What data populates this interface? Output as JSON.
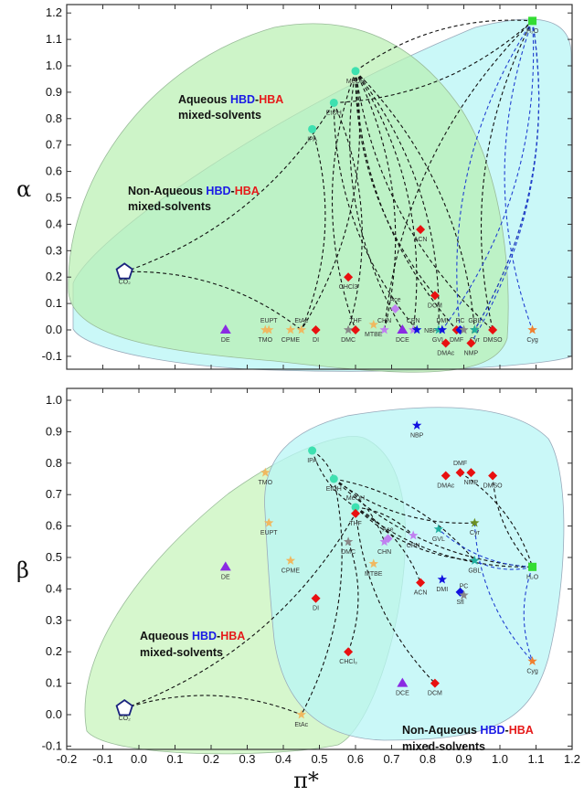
{
  "chart_data": [
    {
      "type": "scatter",
      "panel": "top",
      "xlabel": "",
      "ylabel": "α",
      "xlim": [
        -0.2,
        1.2
      ],
      "ylim": [
        -0.1,
        1.2
      ],
      "xticks": [
        -0.2,
        -0.1,
        0.0,
        0.1,
        0.2,
        0.3,
        0.4,
        0.5,
        0.6,
        0.7,
        0.8,
        0.9,
        1.0,
        1.1,
        1.2
      ],
      "yticks": [
        "-0.1",
        "0.0",
        "0.1",
        "0.2",
        "0.3",
        "0.4",
        "0.5",
        "0.6",
        "0.7",
        "0.8",
        "0.9",
        "1.0",
        "1.1",
        "1.2"
      ],
      "annotations": [
        {
          "parts": [
            "Aqueous ",
            "HBD",
            "-",
            "HBA"
          ],
          "line2": "mixed-solvents"
        },
        {
          "parts": [
            "Non-Aqueous ",
            "HBD",
            "-",
            "HBA"
          ],
          "line2": "mixed-solvents"
        }
      ],
      "points": [
        {
          "label": "H₂O",
          "x": 1.09,
          "y": 1.17,
          "marker": "square",
          "color": "#33dd33"
        },
        {
          "label": "MeOH",
          "x": 0.6,
          "y": 0.98,
          "marker": "circle",
          "color": "#3ee0b0"
        },
        {
          "label": "EtOH",
          "x": 0.54,
          "y": 0.86,
          "marker": "circle",
          "color": "#3ee0b0"
        },
        {
          "label": "IPA",
          "x": 0.48,
          "y": 0.76,
          "marker": "circle",
          "color": "#3ee0b0"
        },
        {
          "label": "CO₂",
          "x": -0.04,
          "y": 0.22,
          "marker": "pentagon",
          "color": "#1a237e"
        },
        {
          "label": "CHCl3",
          "x": 0.58,
          "y": 0.2,
          "marker": "diamond",
          "color": "#e81010"
        },
        {
          "label": "ACN",
          "x": 0.78,
          "y": 0.38,
          "marker": "diamond",
          "color": "#e81010"
        },
        {
          "label": "DCM",
          "x": 0.82,
          "y": 0.13,
          "marker": "diamond",
          "color": "#e81010"
        },
        {
          "label": "Ace",
          "x": 0.71,
          "y": 0.08,
          "marker": "diamond",
          "color": "#c080f0"
        },
        {
          "label": "DE",
          "x": 0.24,
          "y": 0.0,
          "marker": "triangle",
          "color": "#8a2be2"
        },
        {
          "label": "EUPT",
          "x": 0.36,
          "y": 0.0,
          "marker": "star",
          "color": "#f0b860"
        },
        {
          "label": "TMO",
          "x": 0.35,
          "y": 0.0,
          "marker": "star",
          "color": "#f0b860"
        },
        {
          "label": "CPME",
          "x": 0.42,
          "y": 0.0,
          "marker": "star",
          "color": "#f0b860"
        },
        {
          "label": "EtAc",
          "x": 0.45,
          "y": 0.0,
          "marker": "star",
          "color": "#f0b860"
        },
        {
          "label": "DI",
          "x": 0.49,
          "y": 0.0,
          "marker": "diamond",
          "color": "#e81010"
        },
        {
          "label": "DMC",
          "x": 0.58,
          "y": 0.0,
          "marker": "star",
          "color": "#888888"
        },
        {
          "label": "THF",
          "x": 0.6,
          "y": 0.0,
          "marker": "diamond",
          "color": "#e81010"
        },
        {
          "label": "MTBE",
          "x": 0.65,
          "y": 0.02,
          "marker": "star",
          "color": "#f0b860"
        },
        {
          "label": "CHN",
          "x": 0.68,
          "y": 0.0,
          "marker": "star",
          "color": "#c080f0"
        },
        {
          "label": "DCE",
          "x": 0.73,
          "y": 0.0,
          "marker": "triangle",
          "color": "#8a2be2"
        },
        {
          "label": "CPN",
          "x": 0.76,
          "y": 0.0,
          "marker": "star",
          "color": "#c080f0"
        },
        {
          "label": "NBP",
          "x": 0.77,
          "y": 0.0,
          "marker": "star",
          "color": "#1010e0"
        },
        {
          "label": "GVL",
          "x": 0.83,
          "y": 0.0,
          "marker": "star",
          "color": "#20b0a0"
        },
        {
          "label": "DMI",
          "x": 0.84,
          "y": 0.0,
          "marker": "star",
          "color": "#1010e0"
        },
        {
          "label": "DMF",
          "x": 0.88,
          "y": 0.0,
          "marker": "diamond",
          "color": "#e81010"
        },
        {
          "label": "PC",
          "x": 0.89,
          "y": 0.0,
          "marker": "diamond",
          "color": "#1010e0"
        },
        {
          "label": "Sfl",
          "x": 0.9,
          "y": 0.0,
          "marker": "star",
          "color": "#888888"
        },
        {
          "label": "Cyr",
          "x": 0.93,
          "y": 0.0,
          "marker": "star",
          "color": "#6b8e23"
        },
        {
          "label": "GBL",
          "x": 0.93,
          "y": 0.0,
          "marker": "star",
          "color": "#20b0a0"
        },
        {
          "label": "DMSO",
          "x": 0.98,
          "y": 0.0,
          "marker": "diamond",
          "color": "#e81010"
        },
        {
          "label": "DMAc",
          "x": 0.85,
          "y": -0.05,
          "marker": "diamond",
          "color": "#e81010"
        },
        {
          "label": "NMP",
          "x": 0.92,
          "y": -0.05,
          "marker": "diamond",
          "color": "#e81010"
        },
        {
          "label": "Cyg",
          "x": 1.09,
          "y": 0.0,
          "marker": "star",
          "color": "#f08030"
        }
      ],
      "connections": [
        {
          "from": "CO₂",
          "to": "EtAc",
          "color": "#111"
        },
        {
          "from": "CO₂",
          "to": "EtOH",
          "color": "#111"
        },
        {
          "from": "MeOH",
          "to": "EtAc",
          "color": "#111"
        },
        {
          "from": "MeOH",
          "to": "THF",
          "color": "#111"
        },
        {
          "from": "MeOH",
          "to": "CHN",
          "color": "#111"
        },
        {
          "from": "MeOH",
          "to": "DCE",
          "color": "#111"
        },
        {
          "from": "MeOH",
          "to": "CPN",
          "color": "#111"
        },
        {
          "from": "MeOH",
          "to": "DCM",
          "color": "#111"
        },
        {
          "from": "MeOH",
          "to": "GVL",
          "color": "#111"
        },
        {
          "from": "MeOH",
          "to": "DMF",
          "color": "#111"
        },
        {
          "from": "MeOH",
          "to": "GBL",
          "color": "#111"
        },
        {
          "from": "MeOH",
          "to": "DMSO",
          "color": "#111"
        },
        {
          "from": "MeOH",
          "to": "H₂O",
          "color": "#111"
        },
        {
          "from": "EtOH",
          "to": "H₂O",
          "color": "#111"
        },
        {
          "from": "EtOH",
          "to": "DMC",
          "color": "#111"
        },
        {
          "from": "EtOH",
          "to": "NBP",
          "color": "#111"
        },
        {
          "from": "IPA",
          "to": "EtAc",
          "color": "#111"
        },
        {
          "from": "H₂O",
          "to": "CHN",
          "color": "#111"
        },
        {
          "from": "H₂O",
          "to": "Cyr",
          "color": "#111"
        },
        {
          "from": "H₂O",
          "to": "DMSO",
          "color": "#111"
        },
        {
          "from": "H₂O",
          "to": "DMI",
          "color": "#2040d0"
        },
        {
          "from": "H₂O",
          "to": "PC",
          "color": "#2040d0"
        },
        {
          "from": "H₂O",
          "to": "GBL",
          "color": "#2040d0"
        },
        {
          "from": "H₂O",
          "to": "Cyg",
          "color": "#2040d0"
        },
        {
          "from": "H₂O",
          "to": "NMP",
          "color": "#2040d0"
        }
      ]
    },
    {
      "type": "scatter",
      "panel": "bottom",
      "xlabel": "π*",
      "ylabel": "β",
      "xlim": [
        -0.2,
        1.2
      ],
      "ylim": [
        -0.1,
        1.0
      ],
      "xticks": [
        "-0.2",
        "-0.1",
        "0.0",
        "0.1",
        "0.2",
        "0.3",
        "0.4",
        "0.5",
        "0.6",
        "0.7",
        "0.8",
        "0.9",
        "1.0",
        "1.1",
        "1.2"
      ],
      "yticks": [
        "-0.1",
        "0.0",
        "0.1",
        "0.2",
        "0.3",
        "0.4",
        "0.5",
        "0.6",
        "0.7",
        "0.8",
        "0.9",
        "1.0"
      ],
      "annotations": [
        {
          "parts": [
            "Aqueous ",
            "HBD",
            "-",
            "HBA"
          ],
          "line2": "mixed-solvents"
        },
        {
          "parts": [
            "Non-Aqueous ",
            "HBD",
            "-",
            "HBA"
          ],
          "line2": "mixed-solvents"
        }
      ],
      "points": [
        {
          "label": "NBP",
          "x": 0.77,
          "y": 0.92,
          "marker": "star",
          "color": "#1010e0"
        },
        {
          "label": "IPA",
          "x": 0.48,
          "y": 0.84,
          "marker": "circle",
          "color": "#3ee0b0"
        },
        {
          "label": "TMO",
          "x": 0.35,
          "y": 0.77,
          "marker": "star",
          "color": "#f0b860"
        },
        {
          "label": "DMAc",
          "x": 0.85,
          "y": 0.76,
          "marker": "diamond",
          "color": "#e81010"
        },
        {
          "label": "DMF",
          "x": 0.89,
          "y": 0.77,
          "marker": "diamond",
          "color": "#e81010"
        },
        {
          "label": "NMP",
          "x": 0.92,
          "y": 0.77,
          "marker": "diamond",
          "color": "#e81010"
        },
        {
          "label": "DMSO",
          "x": 0.98,
          "y": 0.76,
          "marker": "diamond",
          "color": "#e81010"
        },
        {
          "label": "EtOH",
          "x": 0.54,
          "y": 0.75,
          "marker": "circle",
          "color": "#3ee0b0"
        },
        {
          "label": "MeOH",
          "x": 0.6,
          "y": 0.66,
          "marker": "circle",
          "color": "#3ee0b0"
        },
        {
          "label": "THF",
          "x": 0.6,
          "y": 0.64,
          "marker": "diamond",
          "color": "#e81010"
        },
        {
          "label": "EUPT",
          "x": 0.36,
          "y": 0.61,
          "marker": "star",
          "color": "#f0b860"
        },
        {
          "label": "Cyr",
          "x": 0.93,
          "y": 0.61,
          "marker": "star",
          "color": "#6b8e23"
        },
        {
          "label": "GVL",
          "x": 0.83,
          "y": 0.59,
          "marker": "star",
          "color": "#20b0a0"
        },
        {
          "label": "Ace",
          "x": 0.69,
          "y": 0.56,
          "marker": "diamond",
          "color": "#c080f0"
        },
        {
          "label": "CPN",
          "x": 0.76,
          "y": 0.57,
          "marker": "star",
          "color": "#c080f0"
        },
        {
          "label": "CHN",
          "x": 0.68,
          "y": 0.55,
          "marker": "star",
          "color": "#c080f0"
        },
        {
          "label": "DMC",
          "x": 0.58,
          "y": 0.55,
          "marker": "star",
          "color": "#888888"
        },
        {
          "label": "CPME",
          "x": 0.42,
          "y": 0.49,
          "marker": "star",
          "color": "#f0b860"
        },
        {
          "label": "GBL",
          "x": 0.93,
          "y": 0.49,
          "marker": "star",
          "color": "#20b0a0"
        },
        {
          "label": "MTBE",
          "x": 0.65,
          "y": 0.48,
          "marker": "star",
          "color": "#f0b860"
        },
        {
          "label": "H₂O",
          "x": 1.09,
          "y": 0.47,
          "marker": "square",
          "color": "#33dd33"
        },
        {
          "label": "DE",
          "x": 0.24,
          "y": 0.47,
          "marker": "triangle",
          "color": "#8a2be2"
        },
        {
          "label": "ACN",
          "x": 0.78,
          "y": 0.42,
          "marker": "diamond",
          "color": "#e81010"
        },
        {
          "label": "DMI",
          "x": 0.84,
          "y": 0.43,
          "marker": "star",
          "color": "#1010e0"
        },
        {
          "label": "Sfl",
          "x": 0.89,
          "y": 0.39,
          "marker": "diamond",
          "color": "#1010e0"
        },
        {
          "label": "PC",
          "x": 0.9,
          "y": 0.38,
          "marker": "star",
          "color": "#888888"
        },
        {
          "label": "DI",
          "x": 0.49,
          "y": 0.37,
          "marker": "diamond",
          "color": "#e81010"
        },
        {
          "label": "CHCl₃",
          "x": 0.58,
          "y": 0.2,
          "marker": "diamond",
          "color": "#e81010"
        },
        {
          "label": "Cyg",
          "x": 1.09,
          "y": 0.17,
          "marker": "star",
          "color": "#f08030"
        },
        {
          "label": "DCE",
          "x": 0.73,
          "y": 0.1,
          "marker": "triangle",
          "color": "#8a2be2"
        },
        {
          "label": "DCM",
          "x": 0.82,
          "y": 0.1,
          "marker": "diamond",
          "color": "#e81010"
        },
        {
          "label": "CO₂",
          "x": -0.04,
          "y": 0.02,
          "marker": "pentagon",
          "color": "#1a237e"
        },
        {
          "label": "EtAc",
          "x": 0.45,
          "y": 0.0,
          "marker": "star",
          "color": "#f0b860"
        }
      ],
      "connections": [
        {
          "from": "CO₂",
          "to": "EtAc",
          "color": "#111"
        },
        {
          "from": "CO₂",
          "to": "THF",
          "color": "#111"
        },
        {
          "from": "IPA",
          "to": "EtOH",
          "color": "#111"
        },
        {
          "from": "IPA",
          "to": "MeOH",
          "color": "#111"
        },
        {
          "from": "EtOH",
          "to": "EtAc",
          "color": "#111"
        },
        {
          "from": "EtOH",
          "to": "H₂O",
          "color": "#111"
        },
        {
          "from": "EtOH",
          "to": "GBL",
          "color": "#111"
        },
        {
          "from": "EtOH",
          "to": "Cyr",
          "color": "#111"
        },
        {
          "from": "EtOH",
          "to": "CHN",
          "color": "#111"
        },
        {
          "from": "MeOH",
          "to": "H₂O",
          "color": "#111"
        },
        {
          "from": "MeOH",
          "to": "ACN",
          "color": "#111"
        },
        {
          "from": "MeOH",
          "to": "GBL",
          "color": "#111"
        },
        {
          "from": "MeOH",
          "to": "CPN",
          "color": "#111"
        },
        {
          "from": "MeOH",
          "to": "DCM",
          "color": "#111"
        },
        {
          "from": "DMC",
          "to": "CHCl₃",
          "color": "#111"
        },
        {
          "from": "DMSO",
          "to": "H₂O",
          "color": "#111"
        },
        {
          "from": "DMF",
          "to": "H₂O",
          "color": "#111"
        },
        {
          "from": "H₂O",
          "to": "Cyg",
          "color": "#2040d0"
        },
        {
          "from": "H₂O",
          "to": "GVL",
          "color": "#2040d0"
        },
        {
          "from": "Cyr",
          "to": "Cyg",
          "color": "#2040d0"
        },
        {
          "from": "H₂O",
          "to": "GBL",
          "color": "#2040d0"
        }
      ]
    }
  ],
  "colors": {
    "hbd": "#1a1ae6",
    "hba": "#e61a1a",
    "aqueous_region": "#ccf5c0",
    "nonaqueous_region": "#b8f6f6"
  }
}
